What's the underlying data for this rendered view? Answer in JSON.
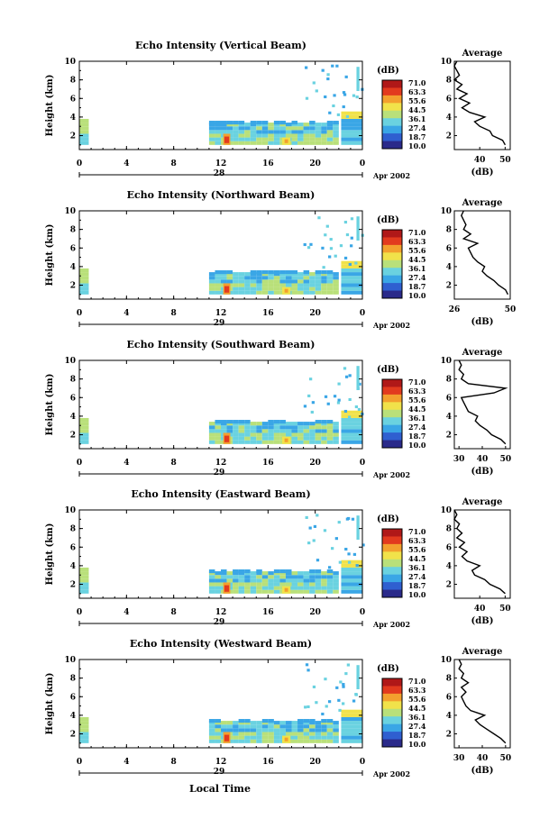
{
  "page": {
    "x_title": "Local Time",
    "date_label": "Apr 2002",
    "colorbar_unit": "(dB)",
    "colorbar_ticks": [
      "71.0",
      "63.3",
      "55.6",
      "44.5",
      "36.1",
      "27.4",
      "18.7",
      "10.0"
    ],
    "colorbar_colors": [
      "#2a2a8a",
      "#2f5fd0",
      "#3aa6e6",
      "#6ad2e0",
      "#b9e07a",
      "#f1e24a",
      "#f3a02e",
      "#e23a1e",
      "#b01818"
    ]
  },
  "chart_data": [
    {
      "type": "heatmap",
      "title": "Echo Intensity (Vertical Beam)",
      "ylabel": "Height (km)",
      "x_ticks": [
        "0",
        "4",
        "8",
        "12",
        "16",
        "20",
        "0"
      ],
      "day_label": "28",
      "y_ticks": [
        "2",
        "4",
        "6",
        "8",
        "10"
      ],
      "xlim": [
        0,
        24
      ],
      "ylim": [
        0.5,
        10
      ],
      "profile": {
        "title": "Average",
        "xlabel": "(dB)",
        "x_ticks": [
          "40",
          "50"
        ],
        "xlim": [
          30,
          52
        ],
        "heights": [
          1.0,
          1.5,
          2.0,
          2.5,
          3.0,
          3.5,
          4.0,
          4.5,
          5.0,
          5.5,
          6.0,
          6.5,
          7.0,
          7.5,
          8.0,
          8.5,
          9.0,
          9.5,
          10.0
        ],
        "values": [
          50,
          49,
          45,
          44,
          40,
          38,
          42,
          36,
          33,
          36,
          32,
          35,
          31,
          33,
          30,
          32,
          31,
          30,
          31
        ]
      }
    },
    {
      "type": "heatmap",
      "title": "Echo Intensity (Northward Beam)",
      "ylabel": "Height (km)",
      "x_ticks": [
        "0",
        "4",
        "8",
        "12",
        "16",
        "20",
        "0"
      ],
      "day_label": "29",
      "y_ticks": [
        "2",
        "4",
        "6",
        "8",
        "10"
      ],
      "xlim": [
        0,
        24
      ],
      "ylim": [
        0.5,
        10
      ],
      "profile": {
        "title": "Average",
        "xlabel": "(dB)",
        "x_ticks": [
          "26",
          "50"
        ],
        "xlim": [
          26,
          50
        ],
        "heights": [
          1.0,
          1.5,
          2.0,
          2.5,
          3.0,
          3.5,
          4.0,
          4.5,
          5.0,
          5.5,
          6.0,
          6.5,
          7.0,
          7.5,
          8.0,
          8.5,
          9.0,
          9.5,
          10.0
        ],
        "values": [
          49,
          48,
          45,
          43,
          40,
          38,
          39,
          36,
          34,
          33,
          32,
          36,
          30,
          33,
          30,
          31,
          30,
          29,
          30
        ]
      }
    },
    {
      "type": "heatmap",
      "title": "Echo Intensity (Southward Beam)",
      "ylabel": "Height (km)",
      "x_ticks": [
        "0",
        "4",
        "8",
        "12",
        "16",
        "20",
        "0"
      ],
      "day_label": "29",
      "y_ticks": [
        "2",
        "4",
        "6",
        "8",
        "10"
      ],
      "xlim": [
        0,
        24
      ],
      "ylim": [
        0.5,
        10
      ],
      "profile": {
        "title": "Average",
        "xlabel": "(dB)",
        "x_ticks": [
          "30",
          "40",
          "50"
        ],
        "xlim": [
          28,
          52
        ],
        "heights": [
          1.0,
          1.5,
          2.0,
          2.5,
          3.0,
          3.5,
          4.0,
          4.5,
          5.0,
          5.5,
          6.0,
          6.5,
          7.0,
          7.5,
          8.0,
          8.5,
          9.0,
          9.5,
          10.0
        ],
        "values": [
          50,
          48,
          44,
          42,
          39,
          37,
          38,
          34,
          33,
          32,
          31,
          45,
          50,
          34,
          31,
          32,
          30,
          31,
          30
        ]
      }
    },
    {
      "type": "heatmap",
      "title": "Echo Intensity (Eastward Beam)",
      "ylabel": "Height (km)",
      "x_ticks": [
        "0",
        "4",
        "8",
        "12",
        "16",
        "20",
        "0"
      ],
      "day_label": "29",
      "y_ticks": [
        "2",
        "4",
        "6",
        "8",
        "10"
      ],
      "xlim": [
        0,
        24
      ],
      "ylim": [
        0.5,
        10
      ],
      "profile": {
        "title": "Average",
        "xlabel": "(dB)",
        "x_ticks": [
          "40",
          "50"
        ],
        "xlim": [
          30,
          52
        ],
        "heights": [
          1.0,
          1.5,
          2.0,
          2.5,
          3.0,
          3.5,
          4.0,
          4.5,
          5.0,
          5.5,
          6.0,
          6.5,
          7.0,
          7.5,
          8.0,
          8.5,
          9.0,
          9.5,
          10.0
        ],
        "values": [
          50,
          48,
          44,
          42,
          38,
          37,
          40,
          35,
          33,
          35,
          32,
          34,
          31,
          33,
          31,
          32,
          30,
          31,
          30
        ]
      }
    },
    {
      "type": "heatmap",
      "title": "Echo Intensity (Westward Beam)",
      "ylabel": "Height (km)",
      "x_ticks": [
        "0",
        "4",
        "8",
        "12",
        "16",
        "20",
        "0"
      ],
      "day_label": "29",
      "y_ticks": [
        "2",
        "4",
        "6",
        "8",
        "10"
      ],
      "xlim": [
        0,
        24
      ],
      "ylim": [
        0.5,
        10
      ],
      "profile": {
        "title": "Average",
        "xlabel": "(dB)",
        "x_ticks": [
          "30",
          "40",
          "50"
        ],
        "xlim": [
          28,
          52
        ],
        "heights": [
          1.0,
          1.5,
          2.0,
          2.5,
          3.0,
          3.5,
          4.0,
          4.5,
          5.0,
          5.5,
          6.0,
          6.5,
          7.0,
          7.5,
          8.0,
          8.5,
          9.0,
          9.5,
          10.0
        ],
        "values": [
          50,
          48,
          45,
          42,
          39,
          37,
          41,
          35,
          33,
          32,
          31,
          33,
          31,
          34,
          31,
          32,
          30,
          31,
          30
        ]
      }
    }
  ]
}
